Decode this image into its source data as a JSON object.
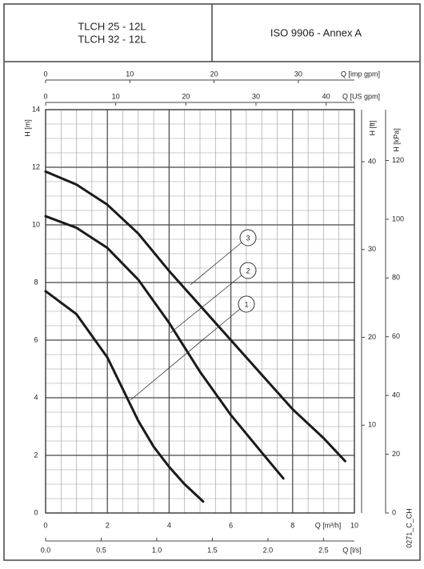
{
  "header": {
    "models": [
      "TLCH 25 - 12L",
      "TLCH 32 - 12L"
    ],
    "standard": "ISO 9906 - Annex A"
  },
  "chart_data": {
    "type": "line",
    "xlabel": "Q [m³/h]",
    "ylabel": "H [m]",
    "xlim": [
      0,
      10
    ],
    "xticks": [
      0,
      2,
      4,
      6,
      8,
      10
    ],
    "ylim": [
      0,
      14
    ],
    "yticks": [
      0,
      2,
      4,
      6,
      8,
      10,
      12,
      14
    ],
    "grid": true,
    "minor_grid_step": 0.5,
    "color": "#1a1a1a",
    "series": [
      {
        "name": "1",
        "x": [
          0,
          1,
          2,
          2.5,
          3,
          3.5,
          4,
          4.5,
          5.1
        ],
        "values": [
          7.7,
          6.9,
          5.4,
          4.3,
          3.2,
          2.3,
          1.6,
          1.0,
          0.4
        ]
      },
      {
        "name": "2",
        "x": [
          0,
          1,
          2,
          3,
          4,
          5,
          6,
          7,
          7.7
        ],
        "values": [
          10.3,
          9.9,
          9.2,
          8.1,
          6.6,
          4.9,
          3.4,
          2.1,
          1.2
        ]
      },
      {
        "name": "3",
        "x": [
          0,
          1,
          2,
          3,
          4,
          5,
          6,
          7,
          8,
          9,
          9.7
        ],
        "values": [
          11.85,
          11.4,
          10.7,
          9.7,
          8.4,
          7.2,
          6.0,
          4.8,
          3.6,
          2.6,
          1.8
        ]
      }
    ],
    "top_axes": [
      {
        "label": "Q [imp gpm]",
        "lim": [
          0,
          36.66
        ],
        "ticks": [
          0,
          10,
          20,
          30
        ]
      },
      {
        "label": "Q [US gpm]",
        "lim": [
          0,
          44.03
        ],
        "ticks": [
          0,
          10,
          20,
          30,
          40
        ]
      }
    ],
    "bottom_axis": {
      "label": "Q [l/s]",
      "lim": [
        0,
        2.778
      ],
      "ticks": [
        {
          "value": 0,
          "label": "0.0"
        },
        0.5,
        {
          "value": 1,
          "label": "1.0"
        },
        1.5,
        {
          "value": 2,
          "label": "2.0"
        },
        2.5
      ]
    },
    "right_axes": [
      {
        "label": "H [ft]",
        "lim": [
          0,
          45.93
        ],
        "ticks": [
          10,
          20,
          30,
          40
        ]
      },
      {
        "label": "H [kPa]",
        "lim": [
          0,
          137.3
        ],
        "ticks": [
          0,
          20,
          40,
          60,
          80,
          100,
          120
        ]
      }
    ],
    "code": "0271_C_CH"
  }
}
